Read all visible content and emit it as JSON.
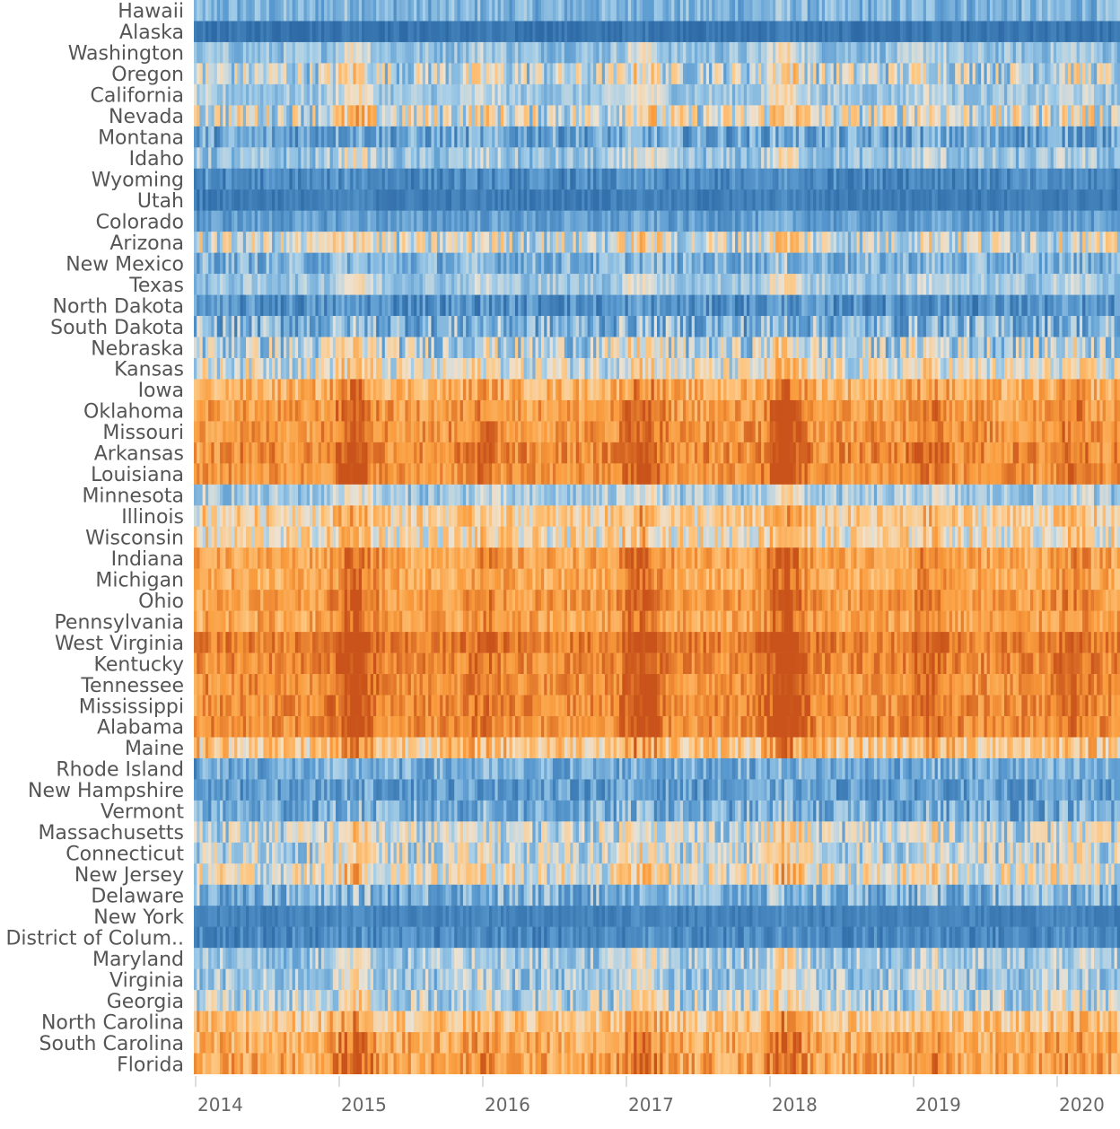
{
  "chart_data": {
    "type": "heatmap",
    "title": "",
    "xlabel": "",
    "ylabel": "",
    "x_axis": {
      "ticks": [
        "2014",
        "2015",
        "2016",
        "2017",
        "2018",
        "2019",
        "2020"
      ]
    },
    "rows": [
      {
        "label": "Hawaii",
        "base": -0.45,
        "var": 0.25
      },
      {
        "label": "Alaska",
        "base": -0.92,
        "var": 0.12
      },
      {
        "label": "Washington",
        "base": -0.35,
        "var": 0.22
      },
      {
        "label": "Oregon",
        "base": -0.15,
        "var": 0.45
      },
      {
        "label": "California",
        "base": -0.3,
        "var": 0.2
      },
      {
        "label": "Nevada",
        "base": -0.05,
        "var": 0.5
      },
      {
        "label": "Montana",
        "base": -0.55,
        "var": 0.35
      },
      {
        "label": "Idaho",
        "base": -0.35,
        "var": 0.25
      },
      {
        "label": "Wyoming",
        "base": -0.75,
        "var": 0.22
      },
      {
        "label": "Utah",
        "base": -0.85,
        "var": 0.12
      },
      {
        "label": "Colorado",
        "base": -0.6,
        "var": 0.2
      },
      {
        "label": "Arizona",
        "base": -0.1,
        "var": 0.45
      },
      {
        "label": "New Mexico",
        "base": -0.45,
        "var": 0.3
      },
      {
        "label": "Texas",
        "base": -0.3,
        "var": 0.2
      },
      {
        "label": "North Dakota",
        "base": -0.7,
        "var": 0.28
      },
      {
        "label": "South Dakota",
        "base": -0.45,
        "var": 0.42
      },
      {
        "label": "Nebraska",
        "base": -0.2,
        "var": 0.45
      },
      {
        "label": "Kansas",
        "base": -0.05,
        "var": 0.4
      },
      {
        "label": "Iowa",
        "base": 0.45,
        "var": 0.3
      },
      {
        "label": "Oklahoma",
        "base": 0.6,
        "var": 0.25
      },
      {
        "label": "Missouri",
        "base": 0.65,
        "var": 0.25
      },
      {
        "label": "Arkansas",
        "base": 0.7,
        "var": 0.25
      },
      {
        "label": "Louisiana",
        "base": 0.65,
        "var": 0.22
      },
      {
        "label": "Minnesota",
        "base": -0.3,
        "var": 0.25
      },
      {
        "label": "Illinois",
        "base": 0.2,
        "var": 0.35
      },
      {
        "label": "Wisconsin",
        "base": 0.1,
        "var": 0.4
      },
      {
        "label": "Indiana",
        "base": 0.55,
        "var": 0.25
      },
      {
        "label": "Michigan",
        "base": 0.5,
        "var": 0.25
      },
      {
        "label": "Ohio",
        "base": 0.62,
        "var": 0.22
      },
      {
        "label": "Pennsylvania",
        "base": 0.55,
        "var": 0.25
      },
      {
        "label": "West Virginia",
        "base": 0.78,
        "var": 0.2
      },
      {
        "label": "Kentucky",
        "base": 0.72,
        "var": 0.22
      },
      {
        "label": "Tennessee",
        "base": 0.68,
        "var": 0.22
      },
      {
        "label": "Mississippi",
        "base": 0.7,
        "var": 0.22
      },
      {
        "label": "Alabama",
        "base": 0.7,
        "var": 0.22
      },
      {
        "label": "Maine",
        "base": 0.3,
        "var": 0.4
      },
      {
        "label": "Rhode Island",
        "base": -0.5,
        "var": 0.3
      },
      {
        "label": "New Hampshire",
        "base": -0.6,
        "var": 0.28
      },
      {
        "label": "Vermont",
        "base": -0.5,
        "var": 0.35
      },
      {
        "label": "Massachusetts",
        "base": -0.15,
        "var": 0.4
      },
      {
        "label": "Connecticut",
        "base": -0.15,
        "var": 0.4
      },
      {
        "label": "New Jersey",
        "base": 0.0,
        "var": 0.42
      },
      {
        "label": "Delaware",
        "base": -0.45,
        "var": 0.35
      },
      {
        "label": "New York",
        "base": -0.8,
        "var": 0.12
      },
      {
        "label": "District of Colum..",
        "base": -0.75,
        "var": 0.22
      },
      {
        "label": "Maryland",
        "base": -0.3,
        "var": 0.3
      },
      {
        "label": "Virginia",
        "base": -0.3,
        "var": 0.3
      },
      {
        "label": "Georgia",
        "base": -0.2,
        "var": 0.4
      },
      {
        "label": "North Carolina",
        "base": 0.3,
        "var": 0.35
      },
      {
        "label": "South Carolina",
        "base": 0.5,
        "var": 0.3
      },
      {
        "label": "Florida",
        "base": 0.55,
        "var": 0.3
      }
    ],
    "columns_per_row": 320,
    "color_scale": {
      "type": "diverging",
      "low": "#2d6aa6",
      "low_mid": "#5b9bd0",
      "light_low": "#a3cde8",
      "mid": "#ede2d1",
      "light_high": "#fdc680",
      "high_mid": "#f99b3c",
      "high": "#c9531a"
    },
    "seasonal_peaks": [
      {
        "year": 2015.1,
        "strength": 0.4
      },
      {
        "year": 2016.0,
        "strength": 0.15
      },
      {
        "year": 2017.1,
        "strength": 0.35
      },
      {
        "year": 2018.1,
        "strength": 0.45
      },
      {
        "year": 2019.1,
        "strength": 0.2
      },
      {
        "year": 2020.1,
        "strength": 0.15
      }
    ]
  }
}
